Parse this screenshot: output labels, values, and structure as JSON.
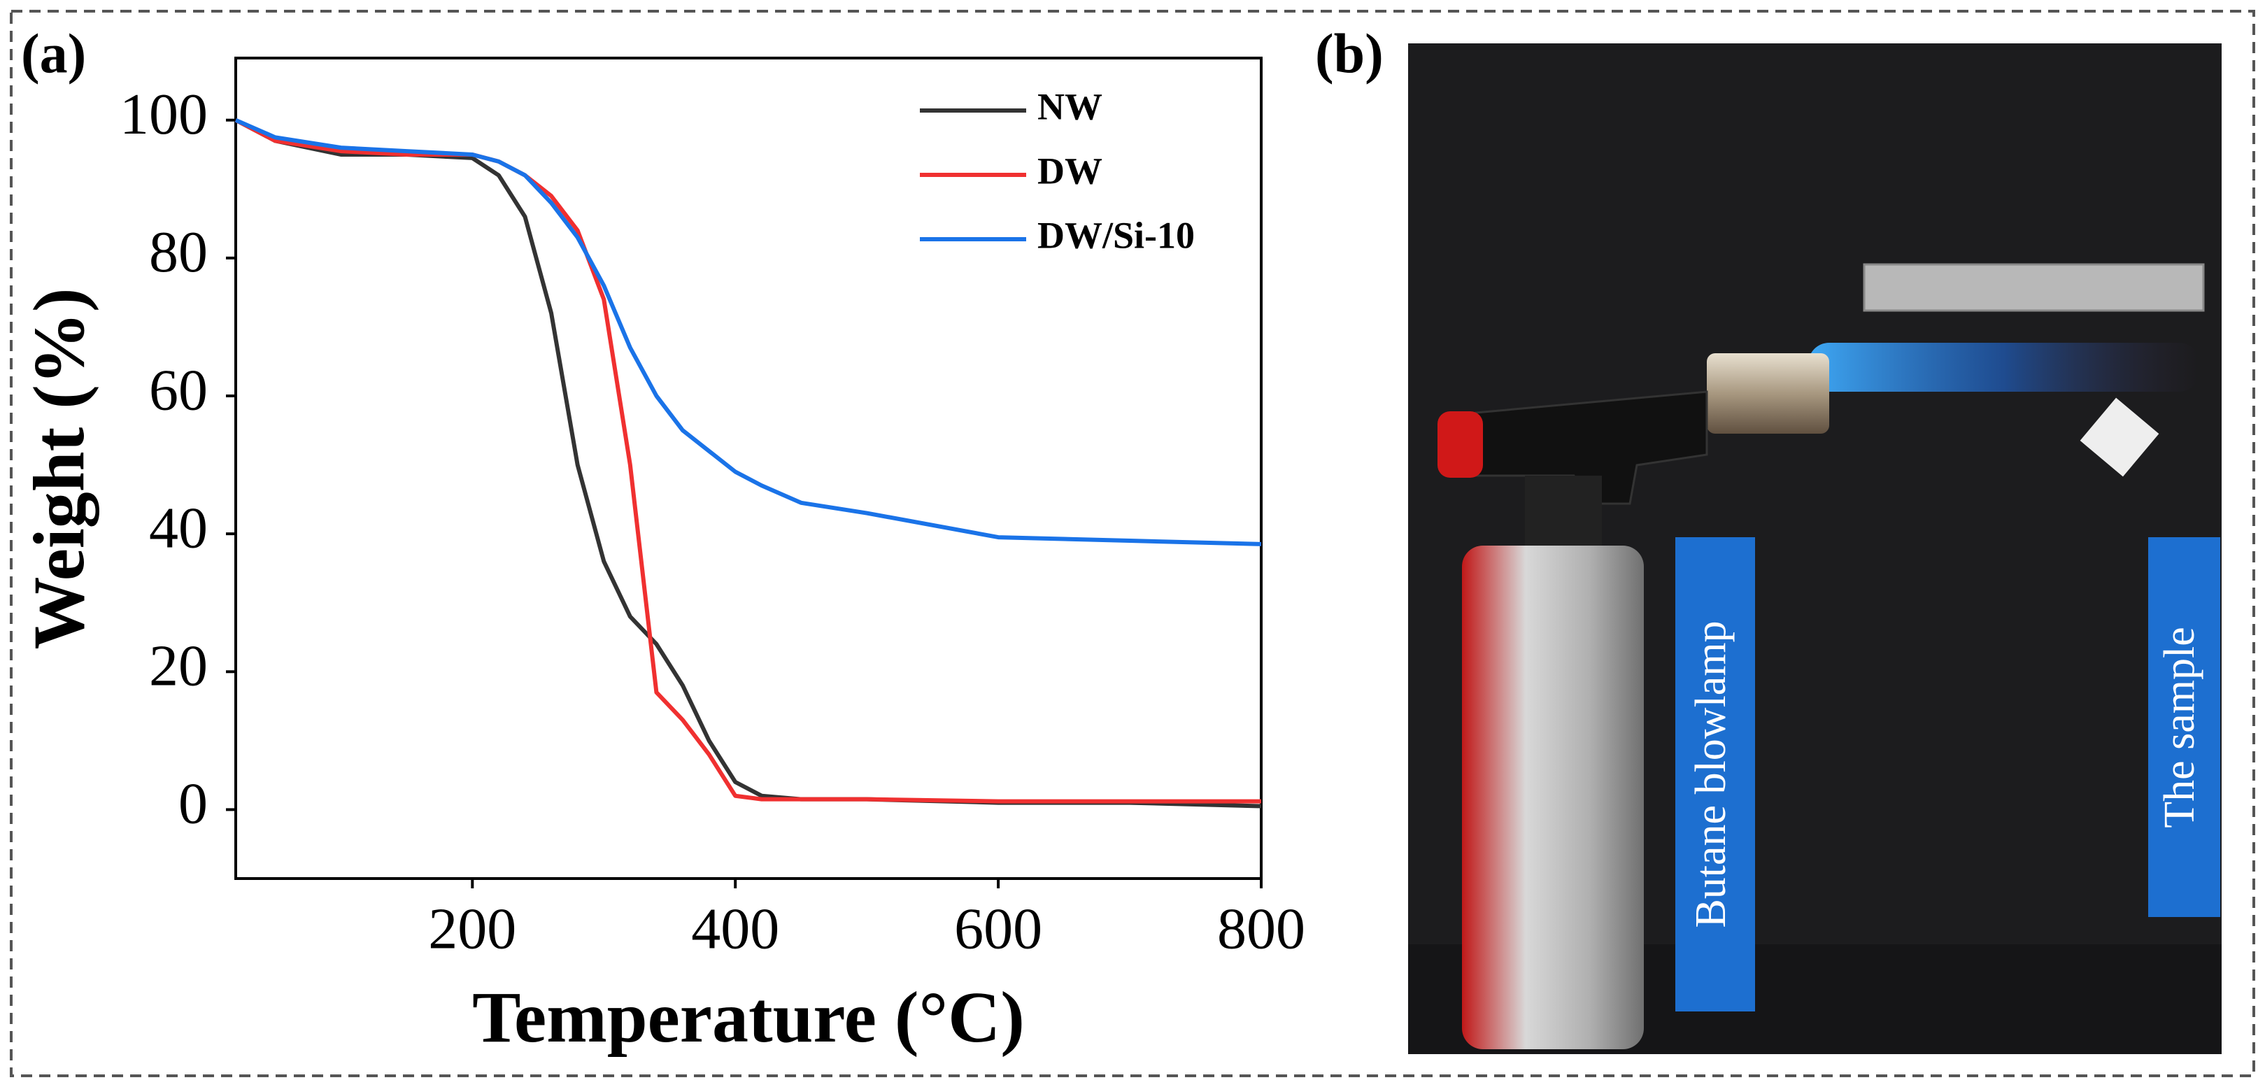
{
  "panels": {
    "a": "(a)",
    "b": "(b)"
  },
  "photo_labels": [
    "Butane blowlamp",
    "The sample"
  ],
  "chart_data": {
    "type": "line",
    "xlabel": "Temperature (°C)",
    "ylabel": "Weight (%)",
    "x": [
      20,
      50,
      100,
      150,
      200,
      220,
      240,
      260,
      280,
      300,
      320,
      340,
      360,
      380,
      400,
      420,
      450,
      500,
      600,
      700,
      800
    ],
    "series": [
      {
        "name": "NW",
        "color": "#333333",
        "values": [
          100,
          97,
          95,
          95,
          94.5,
          92,
          86,
          72,
          50,
          36,
          28,
          24,
          18,
          10,
          4,
          2,
          1.5,
          1.5,
          1,
          1,
          0.5
        ]
      },
      {
        "name": "DW",
        "color": "#f03030",
        "values": [
          100,
          97,
          95.5,
          95,
          95,
          94,
          92,
          89,
          84,
          74,
          50,
          17,
          13,
          8,
          2,
          1.5,
          1.5,
          1.5,
          1.2,
          1.2,
          1.2
        ]
      },
      {
        "name": "DW/Si-10",
        "color": "#1a73e8",
        "values": [
          100,
          97.5,
          96,
          95.5,
          95,
          94,
          92,
          88,
          83,
          76,
          67,
          60,
          55,
          52,
          49,
          47,
          44.5,
          43,
          39.5,
          39,
          38.5
        ]
      }
    ],
    "xlim": [
      20,
      800
    ],
    "ylim": [
      -10,
      109
    ],
    "xticks": [
      200,
      400,
      600,
      800
    ],
    "yticks": [
      0,
      20,
      40,
      60,
      80,
      100
    ],
    "grid": false,
    "legend": "upper right"
  }
}
